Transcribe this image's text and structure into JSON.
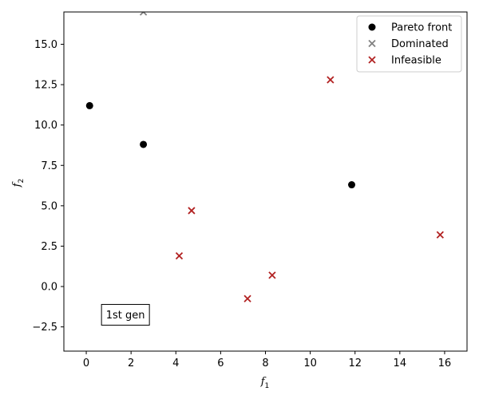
{
  "chart_data": {
    "type": "scatter",
    "title": "",
    "xlabel": "f",
    "xlabel_sub": "1",
    "ylabel": "f",
    "ylabel_sub": "2",
    "xlim": [
      -1,
      17
    ],
    "ylim": [
      -4,
      17
    ],
    "xticks": [
      0,
      2,
      4,
      6,
      8,
      10,
      12,
      14,
      16
    ],
    "xtick_labels": [
      "0",
      "2",
      "4",
      "6",
      "8",
      "10",
      "12",
      "14",
      "16"
    ],
    "yticks": [
      -2.5,
      0,
      2.5,
      5,
      7.5,
      10,
      12.5,
      15
    ],
    "ytick_labels": [
      "−2.5",
      "0.0",
      "2.5",
      "5.0",
      "7.5",
      "10.0",
      "12.5",
      "15.0"
    ],
    "grid": false,
    "legend_position": "top-right",
    "series": [
      {
        "name": "Pareto front",
        "marker": "circle",
        "color": "#000000",
        "points": [
          [
            0.15,
            11.2
          ],
          [
            2.55,
            8.8
          ],
          [
            11.85,
            6.3
          ]
        ]
      },
      {
        "name": "Dominated",
        "marker": "x",
        "color": "#808080",
        "points": [
          [
            2.55,
            17.0
          ]
        ]
      },
      {
        "name": "Infeasible",
        "marker": "x",
        "color": "#b22222",
        "points": [
          [
            10.9,
            12.8
          ],
          [
            4.7,
            4.7
          ],
          [
            4.15,
            1.9
          ],
          [
            8.3,
            0.7
          ],
          [
            7.2,
            -0.75
          ],
          [
            15.8,
            3.2
          ]
        ]
      }
    ],
    "annotation": {
      "text": "1st gen",
      "x": 1.75,
      "y": -1.75
    }
  }
}
